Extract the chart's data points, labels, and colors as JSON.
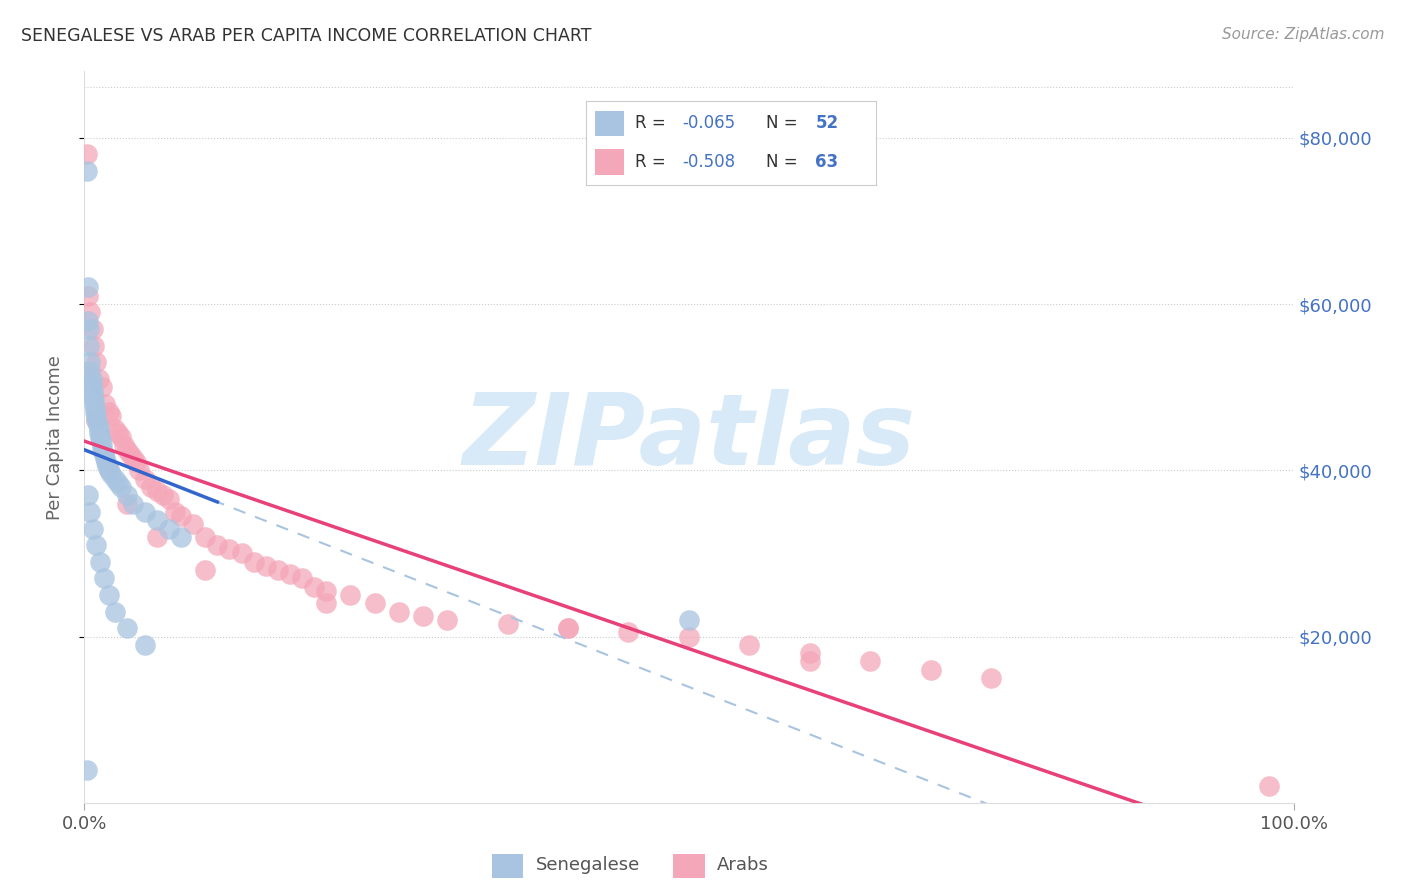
{
  "title": "SENEGALESE VS ARAB PER CAPITA INCOME CORRELATION CHART",
  "source": "Source: ZipAtlas.com",
  "ylabel": "Per Capita Income",
  "xlim": [
    0,
    1.0
  ],
  "ylim": [
    0,
    88000
  ],
  "ytick_vals": [
    20000,
    40000,
    60000,
    80000
  ],
  "ytick_labels": [
    "$20,000",
    "$40,000",
    "$60,000",
    "$80,000"
  ],
  "xtick_vals": [
    0.0,
    1.0
  ],
  "xtick_labels": [
    "0.0%",
    "100.0%"
  ],
  "background_color": "#ffffff",
  "grid_color": "#cccccc",
  "title_color": "#333333",
  "source_color": "#999999",
  "senegalese_color": "#a8c4e0",
  "senegalese_line_color": "#3366cc",
  "senegalese_R": -0.065,
  "senegalese_N": 52,
  "arab_color": "#f4a7b9",
  "arab_line_color": "#e8417a",
  "arab_R": -0.508,
  "arab_N": 63,
  "yaxis_color": "#4472c4",
  "watermark_color": "#d8eaf8",
  "senegalese_x": [
    0.002,
    0.003,
    0.003,
    0.004,
    0.004,
    0.005,
    0.005,
    0.006,
    0.006,
    0.006,
    0.007,
    0.007,
    0.008,
    0.008,
    0.009,
    0.009,
    0.01,
    0.01,
    0.011,
    0.012,
    0.012,
    0.013,
    0.014,
    0.015,
    0.015,
    0.016,
    0.017,
    0.018,
    0.019,
    0.02,
    0.022,
    0.025,
    0.028,
    0.03,
    0.035,
    0.04,
    0.05,
    0.06,
    0.07,
    0.08,
    0.003,
    0.005,
    0.007,
    0.01,
    0.013,
    0.016,
    0.02,
    0.025,
    0.035,
    0.05,
    0.5,
    0.002
  ],
  "senegalese_y": [
    76000,
    62000,
    58000,
    57000,
    55000,
    53000,
    52000,
    51000,
    50500,
    50000,
    49500,
    49000,
    48500,
    48000,
    47500,
    47000,
    46500,
    46000,
    45500,
    45000,
    44500,
    44000,
    43500,
    43000,
    42500,
    42000,
    41500,
    41000,
    40500,
    40000,
    39500,
    39000,
    38500,
    38000,
    37000,
    36000,
    35000,
    34000,
    33000,
    32000,
    37000,
    35000,
    33000,
    31000,
    29000,
    27000,
    25000,
    23000,
    21000,
    19000,
    22000,
    4000
  ],
  "arab_x": [
    0.002,
    0.003,
    0.005,
    0.007,
    0.008,
    0.01,
    0.012,
    0.015,
    0.017,
    0.02,
    0.022,
    0.025,
    0.028,
    0.03,
    0.033,
    0.035,
    0.038,
    0.04,
    0.043,
    0.045,
    0.05,
    0.055,
    0.06,
    0.065,
    0.07,
    0.075,
    0.08,
    0.09,
    0.1,
    0.11,
    0.12,
    0.13,
    0.14,
    0.15,
    0.16,
    0.17,
    0.18,
    0.19,
    0.2,
    0.22,
    0.24,
    0.26,
    0.28,
    0.3,
    0.35,
    0.4,
    0.45,
    0.5,
    0.55,
    0.6,
    0.65,
    0.7,
    0.75,
    0.003,
    0.01,
    0.02,
    0.035,
    0.06,
    0.1,
    0.2,
    0.4,
    0.6,
    0.98
  ],
  "arab_y": [
    78000,
    61000,
    59000,
    57000,
    55000,
    53000,
    51000,
    50000,
    48000,
    47000,
    46500,
    45000,
    44500,
    44000,
    43000,
    42500,
    42000,
    41500,
    41000,
    40000,
    39000,
    38000,
    37500,
    37000,
    36500,
    35000,
    34500,
    33500,
    32000,
    31000,
    30500,
    30000,
    29000,
    28500,
    28000,
    27500,
    27000,
    26000,
    25500,
    25000,
    24000,
    23000,
    22500,
    22000,
    21500,
    21000,
    20500,
    20000,
    19000,
    18000,
    17000,
    16000,
    15000,
    52000,
    46000,
    40000,
    36000,
    32000,
    28000,
    24000,
    21000,
    17000,
    2000
  ]
}
